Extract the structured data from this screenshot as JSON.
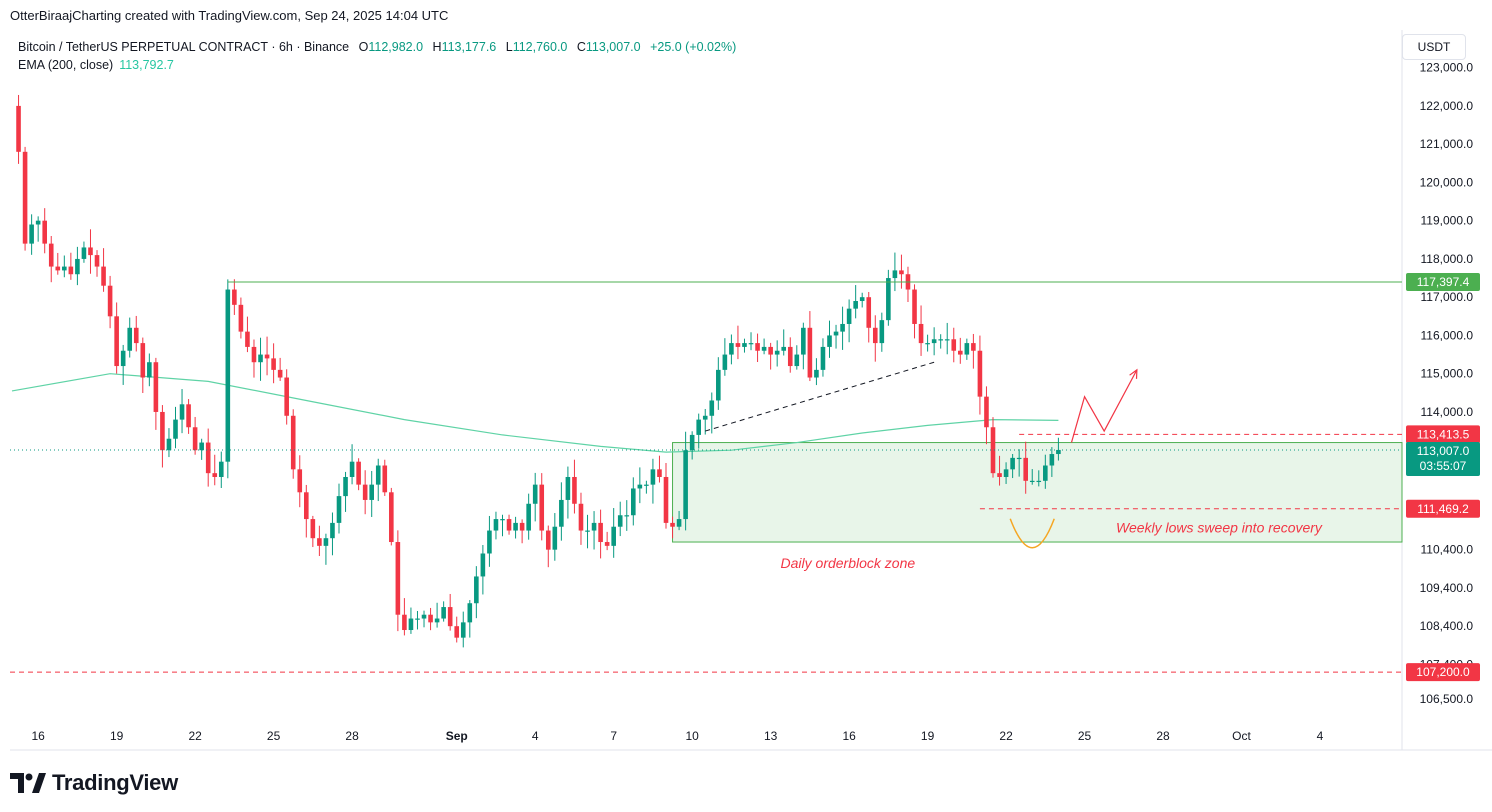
{
  "header": {
    "credit": "OtterBiraajCharting created with TradingView.com, Sep 24, 2025 14:04 UTC"
  },
  "legend": {
    "symbol": "Bitcoin / TetherUS PERPETUAL CONTRACT · 6h · Binance",
    "open_label": "O",
    "open": "112,982.0",
    "high_label": "H",
    "high": "113,177.6",
    "low_label": "L",
    "low": "112,760.0",
    "close_label": "C",
    "close": "113,007.0",
    "change": "+25.0 (+0.02%)",
    "ema_label": "EMA (200, close)",
    "ema_value": "113,792.7"
  },
  "currency": "USDT",
  "branding": {
    "logo_text": "TradingView"
  },
  "colors": {
    "up": "#089981",
    "down": "#f23645",
    "ema": "#5fd3a6",
    "level": "#4caf50",
    "zone_fill": "#e8f5e9",
    "annotation": "#f23645"
  },
  "chart_data": {
    "type": "candlestick",
    "title": "Bitcoin / TetherUS PERPETUAL CONTRACT · 6h · Binance",
    "ylim": [
      106000,
      123200
    ],
    "y_ticks": [
      106500,
      107400,
      108400,
      109400,
      110400,
      111400,
      113000,
      114000,
      115000,
      116000,
      117000,
      118000,
      119000,
      120000,
      121000,
      122000,
      123000
    ],
    "y_tick_labels": [
      "106,500.0",
      "107,400.0",
      "108,400.0",
      "109,400.0",
      "110,400.0",
      "111,400.0",
      "113,000.0",
      "114,000.0",
      "115,000.0",
      "116,000.0",
      "117,000.0",
      "118,000.0",
      "119,000.0",
      "120,000.0",
      "121,000.0",
      "122,000.0",
      "123,000.0"
    ],
    "x_ticks": [
      {
        "label": "16",
        "bar": 4
      },
      {
        "label": "19",
        "bar": 16
      },
      {
        "label": "22",
        "bar": 28
      },
      {
        "label": "25",
        "bar": 40
      },
      {
        "label": "28",
        "bar": 52
      },
      {
        "label": "Sep",
        "bar": 68,
        "bold": true
      },
      {
        "label": "4",
        "bar": 80
      },
      {
        "label": "7",
        "bar": 92
      },
      {
        "label": "10",
        "bar": 104
      },
      {
        "label": "13",
        "bar": 116
      },
      {
        "label": "16",
        "bar": 128
      },
      {
        "label": "19",
        "bar": 140
      },
      {
        "label": "22",
        "bar": 152
      },
      {
        "label": "25",
        "bar": 164
      },
      {
        "label": "28",
        "bar": 176
      },
      {
        "label": "Oct",
        "bar": 188
      },
      {
        "label": "4",
        "bar": 200
      }
    ],
    "waypoints": [
      [
        0,
        122000
      ],
      [
        1,
        120800
      ],
      [
        2,
        118400
      ],
      [
        3,
        118900
      ],
      [
        4,
        119000
      ],
      [
        5,
        118400
      ],
      [
        6,
        117800
      ],
      [
        7,
        117700
      ],
      [
        8,
        117800
      ],
      [
        9,
        117600
      ],
      [
        10,
        118000
      ],
      [
        11,
        118300
      ],
      [
        12,
        118100
      ],
      [
        13,
        117800
      ],
      [
        14,
        117300
      ],
      [
        15,
        116500
      ],
      [
        16,
        115200
      ],
      [
        17,
        115600
      ],
      [
        18,
        116200
      ],
      [
        19,
        115800
      ],
      [
        20,
        114900
      ],
      [
        21,
        115300
      ],
      [
        22,
        114000
      ],
      [
        23,
        113000
      ],
      [
        24,
        113300
      ],
      [
        25,
        113800
      ],
      [
        26,
        114200
      ],
      [
        27,
        113600
      ],
      [
        28,
        113000
      ],
      [
        29,
        113200
      ],
      [
        30,
        112400
      ],
      [
        31,
        112300
      ],
      [
        32,
        112700
      ],
      [
        33,
        117200
      ],
      [
        34,
        116800
      ],
      [
        35,
        116100
      ],
      [
        36,
        115700
      ],
      [
        37,
        115300
      ],
      [
        38,
        115500
      ],
      [
        39,
        115400
      ],
      [
        40,
        115100
      ],
      [
        41,
        114900
      ],
      [
        42,
        113900
      ],
      [
        43,
        112500
      ],
      [
        44,
        111900
      ],
      [
        45,
        111200
      ],
      [
        46,
        110700
      ],
      [
        47,
        110500
      ],
      [
        48,
        110700
      ],
      [
        49,
        111100
      ],
      [
        50,
        111800
      ],
      [
        51,
        112300
      ],
      [
        52,
        112700
      ],
      [
        53,
        112100
      ],
      [
        54,
        111700
      ],
      [
        55,
        112100
      ],
      [
        56,
        112600
      ],
      [
        57,
        111900
      ],
      [
        58,
        110600
      ],
      [
        59,
        108700
      ],
      [
        60,
        108300
      ],
      [
        61,
        108600
      ],
      [
        62,
        108600
      ],
      [
        63,
        108700
      ],
      [
        64,
        108500
      ],
      [
        65,
        108600
      ],
      [
        66,
        108900
      ],
      [
        67,
        108400
      ],
      [
        68,
        108100
      ],
      [
        69,
        108500
      ],
      [
        70,
        109000
      ],
      [
        71,
        109700
      ],
      [
        72,
        110300
      ],
      [
        73,
        110900
      ],
      [
        74,
        111200
      ],
      [
        75,
        111200
      ],
      [
        76,
        110900
      ],
      [
        77,
        111100
      ],
      [
        78,
        110900
      ],
      [
        79,
        111600
      ],
      [
        80,
        112100
      ],
      [
        81,
        110900
      ],
      [
        82,
        110400
      ],
      [
        83,
        111000
      ],
      [
        84,
        111700
      ],
      [
        85,
        112300
      ],
      [
        86,
        111600
      ],
      [
        87,
        110900
      ],
      [
        88,
        110900
      ],
      [
        89,
        111100
      ],
      [
        90,
        110600
      ],
      [
        91,
        110500
      ],
      [
        92,
        111000
      ],
      [
        93,
        111300
      ],
      [
        94,
        111300
      ],
      [
        95,
        112000
      ],
      [
        96,
        112100
      ],
      [
        97,
        112100
      ],
      [
        98,
        112500
      ],
      [
        99,
        112300
      ],
      [
        100,
        111100
      ],
      [
        101,
        111000
      ],
      [
        102,
        111200
      ],
      [
        103,
        113000
      ],
      [
        104,
        113400
      ],
      [
        105,
        113800
      ],
      [
        106,
        113900
      ],
      [
        107,
        114300
      ],
      [
        108,
        115100
      ],
      [
        109,
        115500
      ],
      [
        110,
        115800
      ],
      [
        111,
        115700
      ],
      [
        112,
        115800
      ],
      [
        113,
        115800
      ],
      [
        114,
        115600
      ],
      [
        115,
        115700
      ],
      [
        116,
        115500
      ],
      [
        117,
        115600
      ],
      [
        118,
        115700
      ],
      [
        119,
        115200
      ],
      [
        120,
        115500
      ],
      [
        121,
        116200
      ],
      [
        122,
        114900
      ],
      [
        123,
        115100
      ],
      [
        124,
        115700
      ],
      [
        125,
        116000
      ],
      [
        126,
        116100
      ],
      [
        127,
        116300
      ],
      [
        128,
        116700
      ],
      [
        129,
        116900
      ],
      [
        130,
        117000
      ],
      [
        131,
        116200
      ],
      [
        132,
        115800
      ],
      [
        133,
        116400
      ],
      [
        134,
        117500
      ],
      [
        135,
        117700
      ],
      [
        136,
        117600
      ],
      [
        137,
        117200
      ],
      [
        138,
        116300
      ],
      [
        139,
        115800
      ],
      [
        140,
        115800
      ],
      [
        141,
        115900
      ],
      [
        142,
        115900
      ],
      [
        143,
        115900
      ],
      [
        144,
        115600
      ],
      [
        145,
        115500
      ],
      [
        146,
        115800
      ],
      [
        147,
        115600
      ],
      [
        148,
        114400
      ],
      [
        149,
        113600
      ],
      [
        150,
        112400
      ],
      [
        151,
        112300
      ],
      [
        152,
        112500
      ],
      [
        153,
        112800
      ],
      [
        154,
        112800
      ],
      [
        155,
        112200
      ],
      [
        156,
        112200
      ],
      [
        157,
        112200
      ],
      [
        158,
        112600
      ],
      [
        159,
        112900
      ],
      [
        160,
        113007
      ]
    ],
    "last_bar_index": 160,
    "ema": {
      "name": "EMA (200, close)",
      "last_value": 113792.7,
      "path": [
        [
          0,
          114550
        ],
        [
          15,
          115000
        ],
        [
          30,
          114800
        ],
        [
          45,
          114300
        ],
        [
          60,
          113800
        ],
        [
          75,
          113400
        ],
        [
          90,
          113100
        ],
        [
          100,
          112950
        ],
        [
          110,
          113000
        ],
        [
          120,
          113200
        ],
        [
          130,
          113450
        ],
        [
          140,
          113650
        ],
        [
          150,
          113800
        ],
        [
          160,
          113780
        ]
      ]
    },
    "levels": [
      {
        "value": 117397.4,
        "label": "117,397.4",
        "style": "solid",
        "color": "#4caf50",
        "from_bar": 33
      },
      {
        "value": 113413.5,
        "label": "113,413.5",
        "style": "dashed",
        "color": "#f23645",
        "from_bar": 154
      },
      {
        "value": 111469.2,
        "label": "111,469.2",
        "style": "dashed",
        "color": "#f23645",
        "from_bar": 148
      },
      {
        "value": 107200.0,
        "label": "107,200.0",
        "style": "dashed",
        "color": "#f23645",
        "from_bar": -1
      }
    ],
    "current_price": {
      "value": 113007.0,
      "label": "113,007.0",
      "countdown": "03:55:07"
    },
    "zone": {
      "top": 113200,
      "bottom": 110600,
      "from_bar": 101,
      "label": "Daily orderblock zone"
    },
    "trendline": {
      "from": [
        106,
        113500
      ],
      "to": [
        141,
        115300
      ],
      "style": "dashed"
    },
    "annotation": {
      "text": "Weekly lows sweep into recovery"
    },
    "projection": [
      [
        162,
        113200
      ],
      [
        164,
        114400
      ],
      [
        167,
        113500
      ],
      [
        172,
        115100
      ]
    ]
  }
}
